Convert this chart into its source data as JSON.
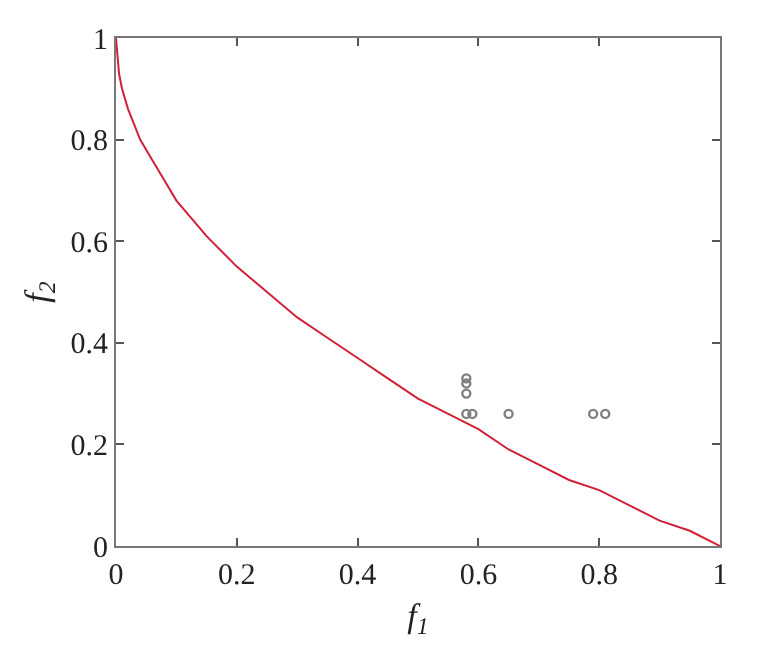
{
  "chart_data": {
    "type": "line",
    "xlabel": "f$_{1}$",
    "ylabel": "f$_{2}$",
    "xlim": [
      0,
      1
    ],
    "ylim": [
      0,
      1
    ],
    "xticks": [
      0,
      0.2,
      0.4,
      0.6,
      0.8,
      1
    ],
    "yticks": [
      0,
      0.2,
      0.4,
      0.6,
      0.8,
      1
    ],
    "grid": false,
    "series": [
      {
        "color": "#d0203a",
        "line_style": "solid",
        "marker": "none",
        "x": [
          0,
          0.005,
          0.01,
          0.02,
          0.04,
          0.06,
          0.08,
          0.1,
          0.15,
          0.2,
          0.25,
          0.3,
          0.35,
          0.4,
          0.45,
          0.5,
          0.55,
          0.6,
          0.65,
          0.7,
          0.75,
          0.8,
          0.85,
          0.9,
          0.95,
          1
        ],
        "values": [
          1,
          0.93,
          0.9,
          0.86,
          0.8,
          0.76,
          0.72,
          0.68,
          0.61,
          0.55,
          0.5,
          0.45,
          0.41,
          0.37,
          0.33,
          0.29,
          0.26,
          0.23,
          0.19,
          0.16,
          0.13,
          0.11,
          0.08,
          0.05,
          0.03,
          0
        ]
      },
      {
        "type": "scatter",
        "color": "#808080",
        "marker": "circle",
        "x": [
          0.58,
          0.58,
          0.58,
          0.58,
          0.59,
          0.65,
          0.79,
          0.81
        ],
        "values": [
          0.33,
          0.32,
          0.3,
          0.26,
          0.26,
          0.26,
          0.26,
          0.26
        ]
      }
    ]
  }
}
